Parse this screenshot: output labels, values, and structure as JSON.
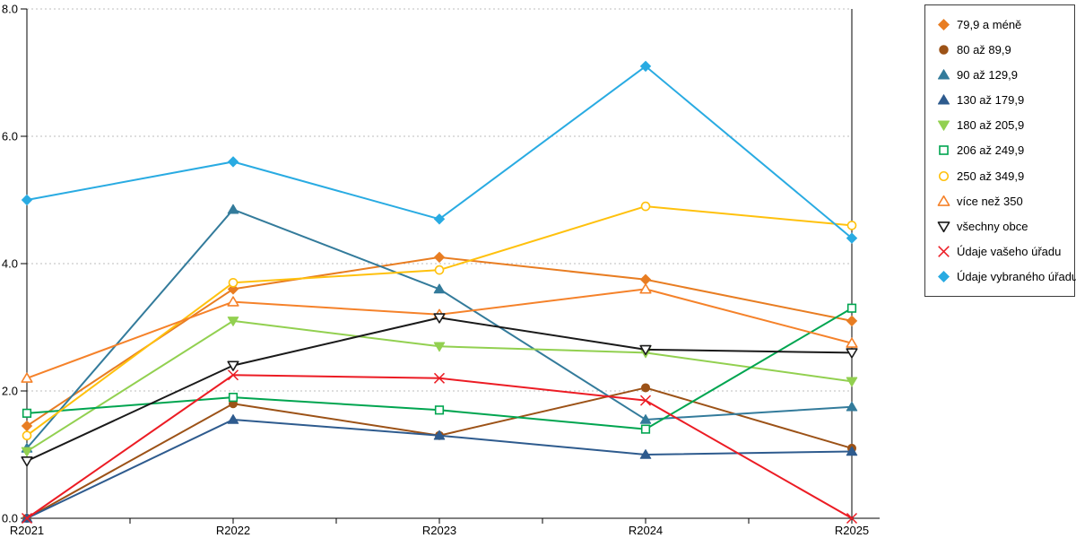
{
  "chart_data": {
    "type": "line",
    "title": "",
    "xlabel": "",
    "ylabel": "",
    "categories": [
      "R2021",
      "R2022",
      "R2023",
      "R2024",
      "R2025"
    ],
    "ylim": [
      0,
      8
    ],
    "ytick_values": [
      0,
      2,
      4,
      6,
      8
    ],
    "ytick_labels": [
      "0.0",
      "2.0",
      "4.0",
      "6.0",
      "8.0"
    ],
    "grid": "horizontal dashed at 2,4,6,8",
    "legend_position": "right",
    "series": [
      {
        "name": "79,9 a méně",
        "color": "#e87d22",
        "marker": "diamond",
        "marker_style": "filled",
        "values": [
          1.45,
          3.6,
          4.1,
          3.75,
          3.1
        ]
      },
      {
        "name": "80 až 89,9",
        "color": "#9c5217",
        "marker": "circle",
        "marker_style": "filled",
        "values": [
          0.0,
          1.8,
          1.3,
          2.05,
          1.1
        ]
      },
      {
        "name": "90 až 129,9",
        "color": "#337b9b",
        "marker": "triangle-up",
        "marker_style": "filled",
        "values": [
          1.1,
          4.85,
          3.6,
          1.55,
          1.75
        ]
      },
      {
        "name": "130 až 179,9",
        "color": "#2e5b8e",
        "marker": "triangle-up",
        "marker_style": "filled",
        "values": [
          0.0,
          1.55,
          1.3,
          1.0,
          1.05
        ]
      },
      {
        "name": "180 až 205,9",
        "color": "#92d050",
        "marker": "triangle-down",
        "marker_style": "filled",
        "values": [
          1.05,
          3.1,
          2.7,
          2.6,
          2.15
        ]
      },
      {
        "name": "206 až 249,9",
        "color": "#00a550",
        "marker": "square",
        "marker_style": "open",
        "values": [
          1.65,
          1.9,
          1.7,
          1.4,
          3.3
        ]
      },
      {
        "name": "250 až 349,9",
        "color": "#ffc10d",
        "marker": "circle",
        "marker_style": "open",
        "values": [
          1.3,
          3.7,
          3.9,
          4.9,
          4.6
        ]
      },
      {
        "name": "více než 350",
        "color": "#f5822a",
        "marker": "triangle-up",
        "marker_style": "open",
        "values": [
          2.2,
          3.4,
          3.2,
          3.6,
          2.75
        ]
      },
      {
        "name": "všechny obce",
        "color": "#1a1a1a",
        "marker": "triangle-down",
        "marker_style": "open",
        "values": [
          0.9,
          2.4,
          3.15,
          2.65,
          2.6
        ]
      },
      {
        "name": "Údaje vašeho úřadu",
        "color": "#ec1c24",
        "marker": "x",
        "marker_style": "line",
        "values": [
          0.0,
          2.25,
          2.2,
          1.85,
          0.0
        ]
      },
      {
        "name": "Údaje vybraného úřadu",
        "color": "#29abe2",
        "marker": "diamond",
        "marker_style": "filled",
        "values": [
          5.0,
          5.6,
          4.7,
          7.1,
          4.4
        ]
      }
    ]
  }
}
